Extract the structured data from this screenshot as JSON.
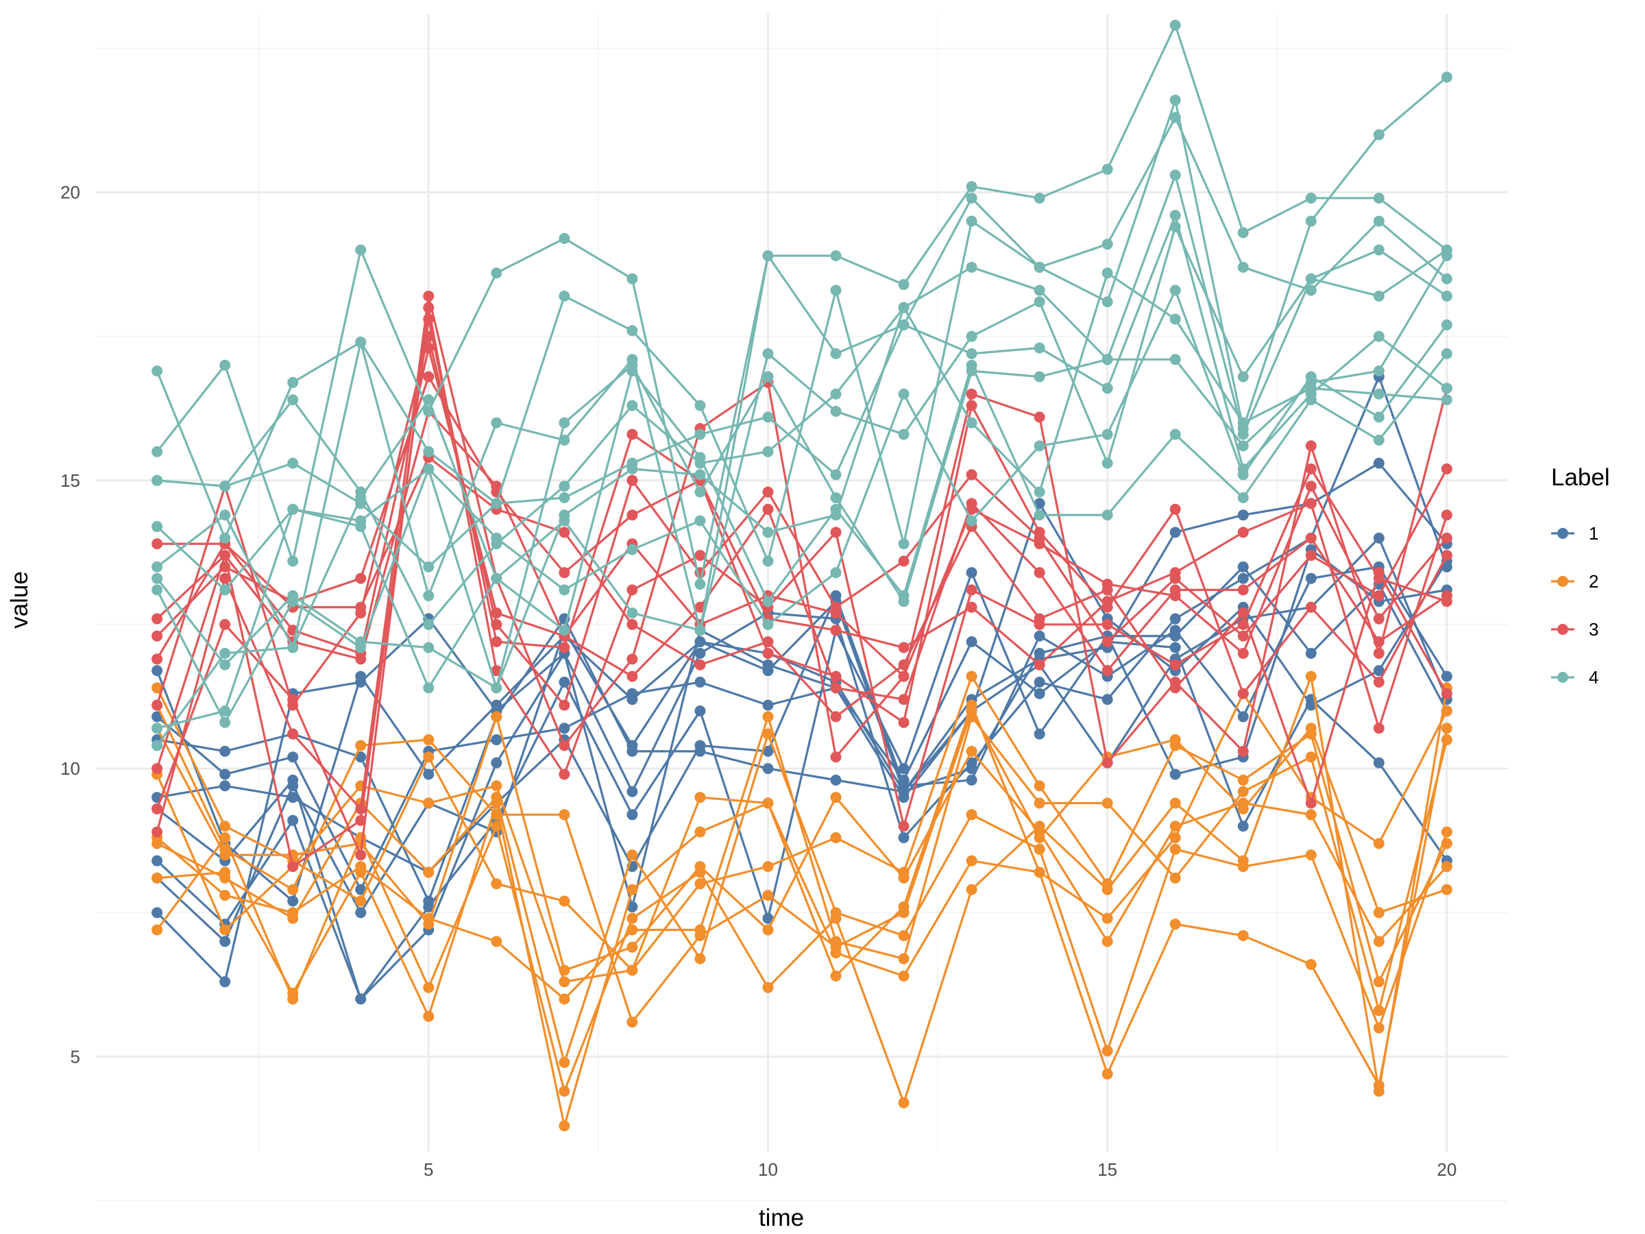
{
  "chart_data": {
    "type": "line",
    "title": "",
    "xlabel": "time",
    "ylabel": "value",
    "xlim": [
      0.1,
      20.9
    ],
    "ylim": [
      3.35,
      23.1
    ],
    "x_ticks": [
      5,
      10,
      15,
      20
    ],
    "y_ticks": [
      5,
      10,
      15,
      20
    ],
    "x": [
      1,
      2,
      3,
      4,
      5,
      6,
      7,
      8,
      9,
      10,
      11,
      12,
      13,
      14,
      15,
      16,
      17,
      18,
      19,
      20
    ],
    "legend": {
      "title": "Label",
      "placement": "right",
      "entries": [
        {
          "label": "1",
          "color": "#4e79a7"
        },
        {
          "label": "2",
          "color": "#f28e2b"
        },
        {
          "label": "3",
          "color": "#e15759"
        },
        {
          "label": "4",
          "color": "#76b7b2"
        }
      ]
    },
    "series": [
      {
        "name": "1",
        "color": "#4e79a7",
        "lines": [
          [
            7.5,
            6.3,
            11.3,
            11.5,
            12.6,
            11.0,
            12.0,
            9.6,
            12.0,
            12.7,
            12.6,
            8.8,
            10.1,
            11.5,
            11.2,
            12.6,
            13.3,
            14.0,
            16.8,
            13.5
          ],
          [
            8.1,
            7.0,
            9.7,
            7.5,
            9.4,
            8.9,
            12.4,
            10.4,
            12.2,
            11.7,
            12.9,
            9.6,
            11.2,
            11.9,
            12.1,
            14.1,
            14.4,
            14.6,
            15.3,
            13.9
          ],
          [
            8.4,
            7.3,
            9.1,
            6.0,
            7.2,
            10.1,
            12.0,
            7.6,
            12.4,
            11.8,
            11.4,
            9.8,
            12.2,
            11.3,
            12.2,
            12.1,
            9.0,
            11.2,
            10.1,
            8.4
          ],
          [
            9.3,
            8.4,
            9.8,
            6.0,
            7.6,
            9.1,
            11.5,
            9.2,
            11.0,
            7.4,
            12.4,
            10.0,
            13.4,
            10.6,
            12.3,
            12.3,
            13.5,
            12.0,
            13.2,
            11.0
          ],
          [
            9.5,
            9.7,
            9.5,
            8.8,
            8.2,
            9.4,
            10.5,
            8.3,
            10.4,
            10.3,
            13.0,
            9.7,
            9.8,
            12.3,
            11.6,
            12.4,
            10.9,
            13.3,
            13.5,
            11.6
          ],
          [
            10.5,
            10.3,
            10.6,
            10.2,
            7.7,
            10.9,
            12.6,
            10.3,
            10.3,
            10.0,
            9.8,
            9.6,
            10.0,
            12.0,
            12.3,
            9.9,
            10.2,
            13.8,
            12.9,
            13.1
          ],
          [
            10.9,
            9.9,
            10.2,
            7.9,
            10.3,
            10.5,
            10.7,
            11.3,
            11.5,
            11.1,
            11.4,
            9.5,
            11.0,
            11.8,
            10.1,
            11.9,
            12.6,
            12.8,
            14.0,
            11.2
          ],
          [
            11.7,
            8.7,
            7.7,
            11.6,
            9.9,
            11.1,
            12.3,
            11.2,
            12.2,
            12.0,
            11.5,
            9.6,
            11.0,
            14.6,
            12.6,
            11.7,
            12.8,
            11.1,
            11.7,
            13.6
          ]
        ]
      },
      {
        "name": "2",
        "color": "#f28e2b",
        "lines": [
          [
            7.2,
            8.8,
            6.0,
            8.8,
            6.2,
            9.0,
            4.4,
            7.4,
            8.2,
            6.2,
            7.4,
            4.2,
            7.9,
            9.0,
            7.9,
            9.4,
            8.4,
            11.6,
            4.4,
            11.4
          ],
          [
            8.1,
            8.2,
            6.1,
            8.2,
            5.7,
            9.4,
            3.8,
            7.9,
            8.9,
            9.4,
            6.8,
            6.4,
            8.4,
            8.2,
            4.7,
            7.3,
            7.1,
            6.6,
            4.5,
            10.7
          ],
          [
            8.7,
            8.1,
            7.4,
            9.4,
            8.2,
            9.5,
            4.9,
            8.5,
            6.7,
            10.6,
            7.5,
            7.1,
            9.2,
            8.6,
            5.1,
            8.6,
            8.3,
            8.5,
            5.5,
            8.9
          ],
          [
            8.8,
            7.8,
            7.5,
            8.3,
            7.4,
            7.0,
            6.0,
            7.2,
            7.2,
            10.9,
            7.0,
            6.7,
            10.9,
            9.4,
            9.4,
            8.1,
            9.6,
            10.2,
            5.8,
            10.5
          ],
          [
            9.9,
            7.2,
            8.3,
            9.7,
            9.4,
            9.7,
            6.3,
            6.5,
            8.0,
            8.3,
            8.8,
            8.2,
            11.6,
            9.7,
            8.0,
            10.4,
            9.8,
            10.6,
            6.3,
            8.7
          ],
          [
            10.7,
            8.5,
            8.5,
            8.7,
            7.3,
            10.9,
            6.5,
            6.9,
            8.3,
            7.2,
            9.5,
            8.1,
            10.3,
            8.9,
            7.0,
            9.0,
            9.4,
            9.2,
            7.0,
            8.3
          ],
          [
            11.1,
            8.6,
            7.9,
            10.4,
            10.5,
            9.2,
            9.2,
            5.6,
            7.1,
            7.8,
            6.9,
            7.5,
            11.0,
            8.8,
            10.2,
            10.5,
            9.3,
            10.7,
            7.5,
            7.9
          ],
          [
            11.4,
            9.0,
            8.4,
            7.7,
            10.2,
            8.0,
            7.7,
            6.5,
            9.5,
            9.4,
            6.4,
            7.6,
            11.1,
            8.2,
            7.4,
            8.8,
            11.3,
            9.5,
            8.7,
            11.0
          ]
        ]
      },
      {
        "name": "3",
        "color": "#e15759",
        "lines": [
          [
            8.9,
            13.3,
            10.6,
            9.3,
            18.2,
            13.3,
            10.4,
            11.9,
            15.9,
            16.7,
            10.2,
            11.6,
            16.5,
            16.1,
            10.1,
            11.5,
            10.3,
            15.6,
            12.0,
            16.6
          ],
          [
            9.3,
            12.5,
            11.2,
            8.5,
            18.0,
            11.7,
            9.9,
            13.1,
            13.7,
            12.8,
            14.1,
            9.0,
            13.1,
            12.5,
            12.5,
            11.8,
            12.5,
            15.2,
            13.3,
            12.9
          ],
          [
            10.0,
            13.7,
            8.3,
            9.1,
            17.8,
            12.2,
            12.1,
            15.8,
            15.0,
            12.0,
            11.6,
            10.8,
            16.3,
            14.1,
            12.8,
            14.5,
            11.3,
            12.8,
            11.5,
            13.7
          ],
          [
            11.1,
            14.9,
            11.1,
            12.7,
            17.5,
            12.5,
            11.1,
            15.0,
            13.4,
            14.8,
            12.8,
            13.6,
            15.1,
            14.0,
            12.2,
            13.3,
            12.3,
            13.7,
            13.0,
            15.2
          ],
          [
            11.9,
            13.9,
            12.4,
            12.0,
            17.3,
            12.7,
            12.3,
            11.6,
            12.8,
            14.5,
            11.4,
            11.2,
            14.6,
            13.4,
            11.7,
            13.1,
            13.1,
            14.0,
            12.2,
            13.0
          ],
          [
            12.3,
            13.5,
            12.9,
            13.3,
            16.8,
            14.8,
            13.4,
            14.4,
            15.0,
            12.6,
            12.4,
            12.1,
            12.8,
            11.8,
            12.9,
            13.4,
            14.1,
            14.6,
            10.7,
            14.4
          ],
          [
            12.6,
            13.7,
            12.2,
            11.9,
            16.2,
            14.9,
            12.3,
            13.9,
            12.5,
            13.0,
            12.7,
            11.6,
            14.5,
            13.9,
            13.2,
            13.0,
            12.0,
            14.9,
            12.6,
            14.0
          ],
          [
            13.9,
            13.9,
            12.8,
            12.8,
            15.4,
            14.5,
            14.1,
            12.5,
            11.8,
            12.2,
            10.9,
            11.8,
            14.2,
            12.6,
            13.1,
            11.4,
            12.7,
            9.4,
            13.4,
            11.3
          ]
        ]
      },
      {
        "name": "4",
        "color": "#76b7b2",
        "lines": [
          [
            16.9,
            14.0,
            16.7,
            17.4,
            13.0,
            16.0,
            15.7,
            17.1,
            12.4,
            18.9,
            18.9,
            18.4,
            20.1,
            19.9,
            20.4,
            22.9,
            19.3,
            19.9,
            19.9,
            19.0
          ],
          [
            15.5,
            17.0,
            13.6,
            19.0,
            16.2,
            18.6,
            19.2,
            18.5,
            13.2,
            18.9,
            17.2,
            17.7,
            19.9,
            18.7,
            18.1,
            21.6,
            15.9,
            19.5,
            21.0,
            22.0
          ],
          [
            15.0,
            14.9,
            15.3,
            14.6,
            13.5,
            14.6,
            18.2,
            17.6,
            16.3,
            13.6,
            18.3,
            13.9,
            19.5,
            18.7,
            19.1,
            21.3,
            18.7,
            18.3,
            19.5,
            18.5
          ],
          [
            15.0,
            14.9,
            16.4,
            14.8,
            12.5,
            13.9,
            14.9,
            16.3,
            15.3,
            15.5,
            16.5,
            18.0,
            18.7,
            18.3,
            17.1,
            20.3,
            15.8,
            18.5,
            19.0,
            18.2
          ],
          [
            14.2,
            13.1,
            14.5,
            14.2,
            11.4,
            13.3,
            14.3,
            12.7,
            12.4,
            17.2,
            16.2,
            15.8,
            17.5,
            18.1,
            15.3,
            19.4,
            16.8,
            18.5,
            18.2,
            19.0
          ],
          [
            13.5,
            14.4,
            12.1,
            17.4,
            15.5,
            14.6,
            14.7,
            15.3,
            15.8,
            16.1,
            15.1,
            17.7,
            17.2,
            17.3,
            16.6,
            19.6,
            15.2,
            16.5,
            17.5,
            16.6
          ],
          [
            13.3,
            11.8,
            13.0,
            12.2,
            12.1,
            11.4,
            16.0,
            17.0,
            14.8,
            16.8,
            14.7,
            12.9,
            16.9,
            16.8,
            17.1,
            17.1,
            15.6,
            16.7,
            16.9,
            18.9
          ],
          [
            13.1,
            10.8,
            12.9,
            12.1,
            15.2,
            14.0,
            13.1,
            13.8,
            14.3,
            12.5,
            13.4,
            16.5,
            14.3,
            15.6,
            15.8,
            18.3,
            15.1,
            16.8,
            16.1,
            17.7
          ],
          [
            10.4,
            12.0,
            12.1,
            14.7,
            16.4,
            13.3,
            12.4,
            16.9,
            15.4,
            12.9,
            14.5,
            13.0,
            17.0,
            14.4,
            14.4,
            15.8,
            14.7,
            16.4,
            15.7,
            17.2
          ],
          [
            10.7,
            11.0,
            14.5,
            14.3,
            15.2,
            11.4,
            14.4,
            15.2,
            15.1,
            14.1,
            14.4,
            18.0,
            16.0,
            14.8,
            18.6,
            17.8,
            16.0,
            16.6,
            16.5,
            16.4
          ]
        ]
      }
    ]
  }
}
